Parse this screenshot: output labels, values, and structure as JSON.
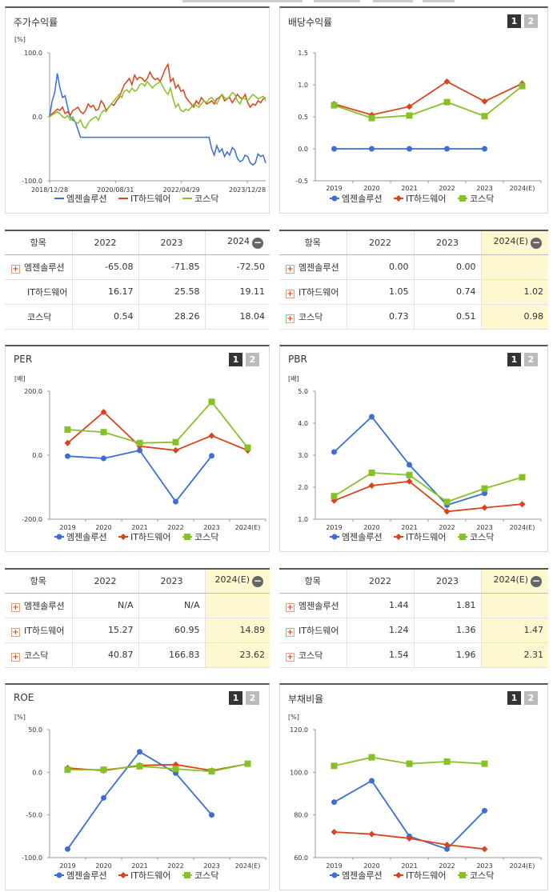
{
  "panels": {
    "stock": {
      "title": "주가수익률",
      "unit": "[%]"
    },
    "dividend": {
      "title": "배당수익률"
    },
    "per": {
      "title": "PER",
      "unit": "[배]"
    },
    "pbr": {
      "title": "PBR",
      "unit": "[배]"
    },
    "roe": {
      "title": "ROE",
      "unit": "[%]"
    },
    "debt": {
      "title": "부채비율",
      "unit": "[%]"
    }
  },
  "pager": {
    "one": "1",
    "two": "2"
  },
  "legend": [
    "엠젠솔루션",
    "IT하드웨어",
    "코스닥"
  ],
  "colors": {
    "s1": "#3a6fd8",
    "s2": "#d9441a",
    "s3": "#86c226"
  },
  "tables": {
    "stock": {
      "headers": [
        "항목",
        "2022",
        "2023",
        "2024"
      ],
      "rows": [
        {
          "name": "엠젠솔루션",
          "vals": [
            "-65.08",
            "-71.85",
            "-72.50"
          ]
        },
        {
          "name": "IT하드웨어",
          "vals": [
            "16.17",
            "25.58",
            "19.11"
          ]
        },
        {
          "name": "코스닥",
          "vals": [
            "0.54",
            "28.26",
            "18.04"
          ]
        }
      ]
    },
    "dividend": {
      "headers": [
        "항목",
        "2022",
        "2023",
        "2024(E)"
      ],
      "rows": [
        {
          "name": "엠젠솔루션",
          "vals": [
            "0.00",
            "0.00",
            ""
          ]
        },
        {
          "name": "IT하드웨어",
          "vals": [
            "1.05",
            "0.74",
            "1.02"
          ]
        },
        {
          "name": "코스닥",
          "vals": [
            "0.73",
            "0.51",
            "0.98"
          ]
        }
      ]
    },
    "per": {
      "headers": [
        "항목",
        "2022",
        "2023",
        "2024(E)"
      ],
      "rows": [
        {
          "name": "엠젠솔루션",
          "vals": [
            "N/A",
            "N/A",
            ""
          ]
        },
        {
          "name": "IT하드웨어",
          "vals": [
            "15.27",
            "60.95",
            "14.89"
          ]
        },
        {
          "name": "코스닥",
          "vals": [
            "40.87",
            "166.83",
            "23.62"
          ]
        }
      ]
    },
    "pbr": {
      "headers": [
        "항목",
        "2022",
        "2023",
        "2024(E)"
      ],
      "rows": [
        {
          "name": "엠젠솔루션",
          "vals": [
            "1.44",
            "1.81",
            ""
          ]
        },
        {
          "name": "IT하드웨어",
          "vals": [
            "1.24",
            "1.36",
            "1.47"
          ]
        },
        {
          "name": "코스닥",
          "vals": [
            "1.54",
            "1.96",
            "2.31"
          ]
        }
      ]
    }
  },
  "chart_data": [
    {
      "id": "stock",
      "type": "line",
      "title": "주가수익률",
      "ylabel": "[%]",
      "ylim": [
        -100,
        100
      ],
      "yticks": [
        "100.0",
        "0.0",
        "-100.0"
      ],
      "xticks": [
        "2018/12/28",
        "2020/08/31",
        "2022/04/29",
        "2023/12/28"
      ],
      "series": [
        {
          "name": "엠젠솔루션",
          "values": [
            0,
            25,
            38,
            68,
            45,
            30,
            33,
            15,
            0,
            -5,
            -8,
            -20,
            -32,
            -32,
            -32,
            -32,
            -32,
            -32,
            -32,
            -32,
            -32,
            -32,
            -32,
            -32,
            -32,
            -32,
            -32,
            -32,
            -32,
            -32,
            -32,
            -32,
            -32,
            -32,
            -32,
            -32,
            -32,
            -32,
            -32,
            -32,
            -32,
            -32,
            -32,
            -32,
            -32,
            -32,
            -32,
            -32,
            -32,
            -32,
            -32,
            -32,
            -32,
            -32,
            -32,
            -32,
            -32,
            -32,
            -32,
            -32,
            -32,
            -32,
            -32,
            -50,
            -60,
            -45,
            -55,
            -50,
            -62,
            -55,
            -60,
            -48,
            -52,
            -65,
            -70,
            -68,
            -60,
            -62,
            -72,
            -75,
            -72,
            -58,
            -62,
            -60,
            -72
          ]
        },
        {
          "name": "IT하드웨어",
          "values": [
            0,
            5,
            8,
            12,
            10,
            15,
            5,
            8,
            2,
            10,
            12,
            15,
            8,
            5,
            10,
            20,
            15,
            18,
            10,
            12,
            25,
            20,
            10,
            15,
            20,
            18,
            25,
            30,
            40,
            50,
            55,
            60,
            50,
            65,
            58,
            62,
            60,
            55,
            60,
            70,
            62,
            58,
            60,
            55,
            65,
            75,
            82,
            55,
            60,
            45,
            50,
            40,
            42,
            30,
            25,
            20,
            15,
            25,
            20,
            30,
            25,
            20,
            22,
            25,
            20,
            28,
            30,
            35,
            25,
            28,
            30,
            22,
            28,
            35,
            30,
            28,
            35,
            22,
            15,
            20,
            18,
            25,
            22,
            28,
            30
          ]
        },
        {
          "name": "코스닥",
          "values": [
            0,
            3,
            5,
            8,
            5,
            0,
            -2,
            2,
            -5,
            0,
            -8,
            -10,
            -5,
            -15,
            -18,
            -10,
            -5,
            -2,
            0,
            -5,
            5,
            10,
            8,
            15,
            20,
            25,
            30,
            35,
            30,
            40,
            42,
            38,
            45,
            40,
            42,
            50,
            52,
            48,
            55,
            50,
            45,
            50,
            52,
            55,
            48,
            40,
            35,
            45,
            28,
            15,
            20,
            10,
            8,
            12,
            10,
            15,
            20,
            18,
            15,
            20,
            25,
            22,
            28,
            30,
            25,
            20,
            28,
            35,
            30,
            28,
            32,
            38,
            35,
            25,
            20,
            30,
            28,
            25,
            30,
            35,
            32,
            28,
            30,
            32,
            25
          ]
        }
      ]
    },
    {
      "id": "dividend",
      "type": "line",
      "title": "배당수익률",
      "categories": [
        "2019",
        "2020",
        "2021",
        "2022",
        "2023",
        "2024(E)"
      ],
      "ylim": [
        -0.5,
        1.5
      ],
      "yticks": [
        "1.5",
        "1.0",
        "0.5",
        "0.0",
        "-0.5"
      ],
      "series": [
        {
          "name": "엠젠솔루션",
          "values": [
            0.0,
            0.0,
            0.0,
            0.0,
            0.0,
            null
          ]
        },
        {
          "name": "IT하드웨어",
          "values": [
            0.7,
            0.53,
            0.66,
            1.05,
            0.74,
            1.02
          ]
        },
        {
          "name": "코스닥",
          "values": [
            0.68,
            0.48,
            0.52,
            0.73,
            0.51,
            0.98
          ]
        }
      ]
    },
    {
      "id": "per",
      "type": "line",
      "title": "PER",
      "ylabel": "[배]",
      "categories": [
        "2019",
        "2020",
        "2021",
        "2022",
        "2023",
        "2024(E)"
      ],
      "ylim": [
        -200,
        200
      ],
      "yticks": [
        "200.0",
        "0.0",
        "-200.0"
      ],
      "series": [
        {
          "name": "엠젠솔루션",
          "values": [
            -3,
            -10,
            15,
            -145,
            -2,
            null
          ]
        },
        {
          "name": "IT하드웨어",
          "values": [
            38,
            135,
            28,
            15.27,
            60.95,
            14.89
          ]
        },
        {
          "name": "코스닥",
          "values": [
            80,
            72,
            38,
            40.87,
            166.83,
            23.62
          ]
        }
      ]
    },
    {
      "id": "pbr",
      "type": "line",
      "title": "PBR",
      "ylabel": "[배]",
      "categories": [
        "2019",
        "2020",
        "2021",
        "2022",
        "2023",
        "2024(E)"
      ],
      "ylim": [
        1.0,
        5.0
      ],
      "yticks": [
        "5.0",
        "4.0",
        "3.0",
        "2.0",
        "1.0"
      ],
      "series": [
        {
          "name": "엠젠솔루션",
          "values": [
            3.1,
            4.2,
            2.7,
            1.44,
            1.81,
            null
          ]
        },
        {
          "name": "IT하드웨어",
          "values": [
            1.58,
            2.05,
            2.18,
            1.24,
            1.36,
            1.47
          ]
        },
        {
          "name": "코스닥",
          "values": [
            1.72,
            2.45,
            2.38,
            1.54,
            1.96,
            2.31
          ]
        }
      ]
    },
    {
      "id": "roe",
      "type": "line",
      "title": "ROE",
      "ylabel": "[%]",
      "categories": [
        "2019",
        "2020",
        "2021",
        "2022",
        "2023",
        "2024(E)"
      ],
      "ylim": [
        -100,
        50
      ],
      "yticks": [
        "50.0",
        "0.0",
        "-50.0",
        "-100.0"
      ],
      "series": [
        {
          "name": "엠젠솔루션",
          "values": [
            -90,
            -30,
            24,
            -1,
            -50,
            null
          ]
        },
        {
          "name": "IT하드웨어",
          "values": [
            5,
            2,
            8,
            9,
            2,
            10
          ]
        },
        {
          "name": "코스닥",
          "values": [
            3,
            3,
            7,
            4,
            1,
            10
          ]
        }
      ]
    },
    {
      "id": "debt",
      "type": "line",
      "title": "부채비율",
      "ylabel": "[%]",
      "categories": [
        "2019",
        "2020",
        "2021",
        "2022",
        "2023",
        "2024(E)"
      ],
      "ylim": [
        60,
        120
      ],
      "yticks": [
        "120.0",
        "100.0",
        "80.0",
        "60.0"
      ],
      "series": [
        {
          "name": "엠젠솔루션",
          "values": [
            86,
            96,
            70,
            64,
            82,
            null
          ]
        },
        {
          "name": "IT하드웨어",
          "values": [
            72,
            71,
            69,
            66,
            64,
            null
          ]
        },
        {
          "name": "코스닥",
          "values": [
            103,
            107,
            104,
            105,
            104,
            null
          ]
        }
      ]
    }
  ]
}
